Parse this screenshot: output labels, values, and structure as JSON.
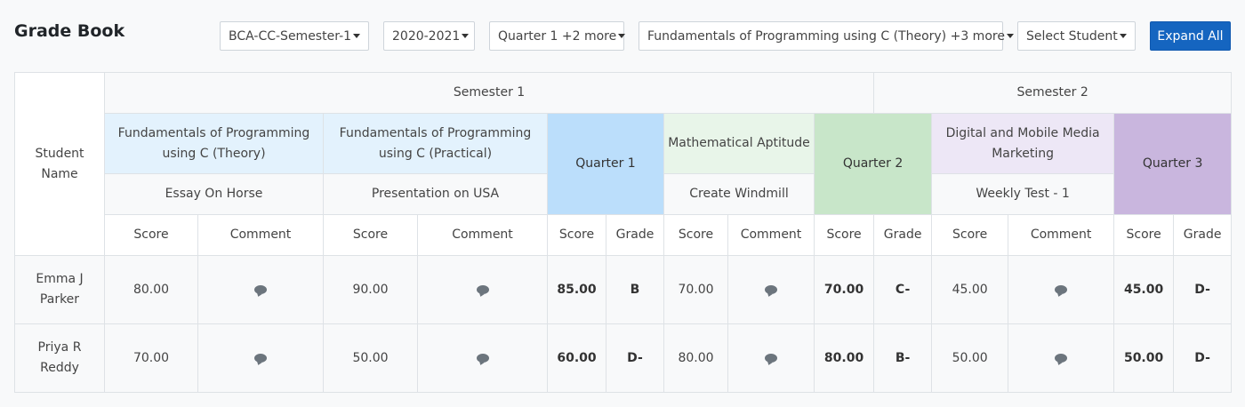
{
  "page": {
    "title": "Grade Book"
  },
  "filters": {
    "program": "BCA-CC-Semester-1",
    "year": "2020-2021",
    "quarter": "Quarter 1 +2 more",
    "subject": "Fundamentals of Programming using C (Theory) +3 more",
    "student": "Select Student",
    "expand_label": "Expand All"
  },
  "table": {
    "student_name_header": "Student Name",
    "semesters": [
      "Semester 1",
      "Semester 2"
    ],
    "courses": [
      {
        "name": "Fundamentals of Programming using C (Theory)",
        "assessment": "Essay On Horse"
      },
      {
        "name": "Fundamentals of Programming using C (Practical)",
        "assessment": "Presentation on USA"
      },
      {
        "name": "Mathematical Aptitude",
        "assessment": "Create Windmill"
      },
      {
        "name": "Digital and Mobile Media Marketing",
        "assessment": "Weekly Test - 1"
      }
    ],
    "quarters": [
      "Quarter 1",
      "Quarter 2",
      "Quarter 3"
    ],
    "col_labels": {
      "score": "Score",
      "comment": "Comment",
      "grade": "Grade"
    },
    "colors": {
      "quarter1": "#bbdefb",
      "quarter2": "#c8e6c9",
      "quarter3": "#c9b6de",
      "primary": "#1565c0"
    },
    "rows": [
      {
        "name": "Emma J Parker",
        "c1_score": "80.00",
        "c2_score": "90.00",
        "q1_score": "85.00",
        "q1_grade": "B",
        "c3_score": "70.00",
        "q2_score": "70.00",
        "q2_grade": "C-",
        "c4_score": "45.00",
        "q3_score": "45.00",
        "q3_grade": "D-"
      },
      {
        "name": "Priya R Reddy",
        "c1_score": "70.00",
        "c2_score": "50.00",
        "q1_score": "60.00",
        "q1_grade": "D-",
        "c3_score": "80.00",
        "q2_score": "80.00",
        "q2_grade": "B-",
        "c4_score": "50.00",
        "q3_score": "50.00",
        "q3_grade": "D-"
      }
    ]
  }
}
